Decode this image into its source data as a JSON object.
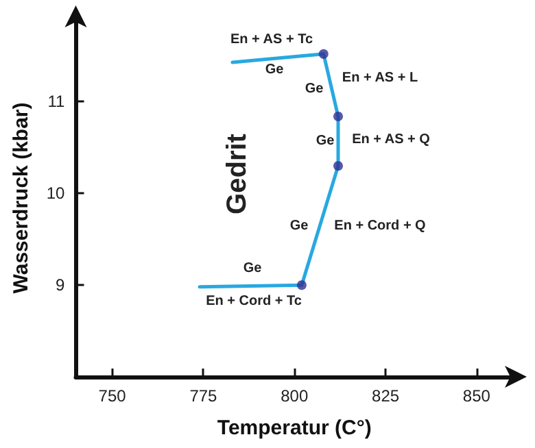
{
  "chart_data": {
    "type": "line",
    "xlabel": "Temperatur (C°)",
    "ylabel": "Wasserdruck (kbar)",
    "xlim": [
      740,
      860
    ],
    "ylim": [
      8,
      11.9
    ],
    "xticks": [
      750,
      775,
      800,
      825,
      850
    ],
    "yticks": [
      9,
      10,
      11
    ],
    "grid": false,
    "series": [
      {
        "color": "#29a8e0",
        "marker": "none",
        "x": [
          783,
          808,
          812,
          812,
          802,
          774
        ],
        "values": [
          11.43,
          11.52,
          10.84,
          10.3,
          9.0,
          8.98
        ]
      },
      {
        "type": "scatter",
        "color": "#2e3192",
        "marker": "circle",
        "x": [
          808,
          812,
          812,
          802
        ],
        "values": [
          11.52,
          10.84,
          10.3,
          9.0
        ]
      }
    ],
    "annotations": [
      "Gedrit",
      "En + AS + Tc",
      "Ge",
      "Ge",
      "En + AS + L",
      "Ge",
      "En + AS + Q",
      "Ge",
      "En + Cord + Q",
      "Ge",
      "En + Cord + Tc"
    ]
  }
}
